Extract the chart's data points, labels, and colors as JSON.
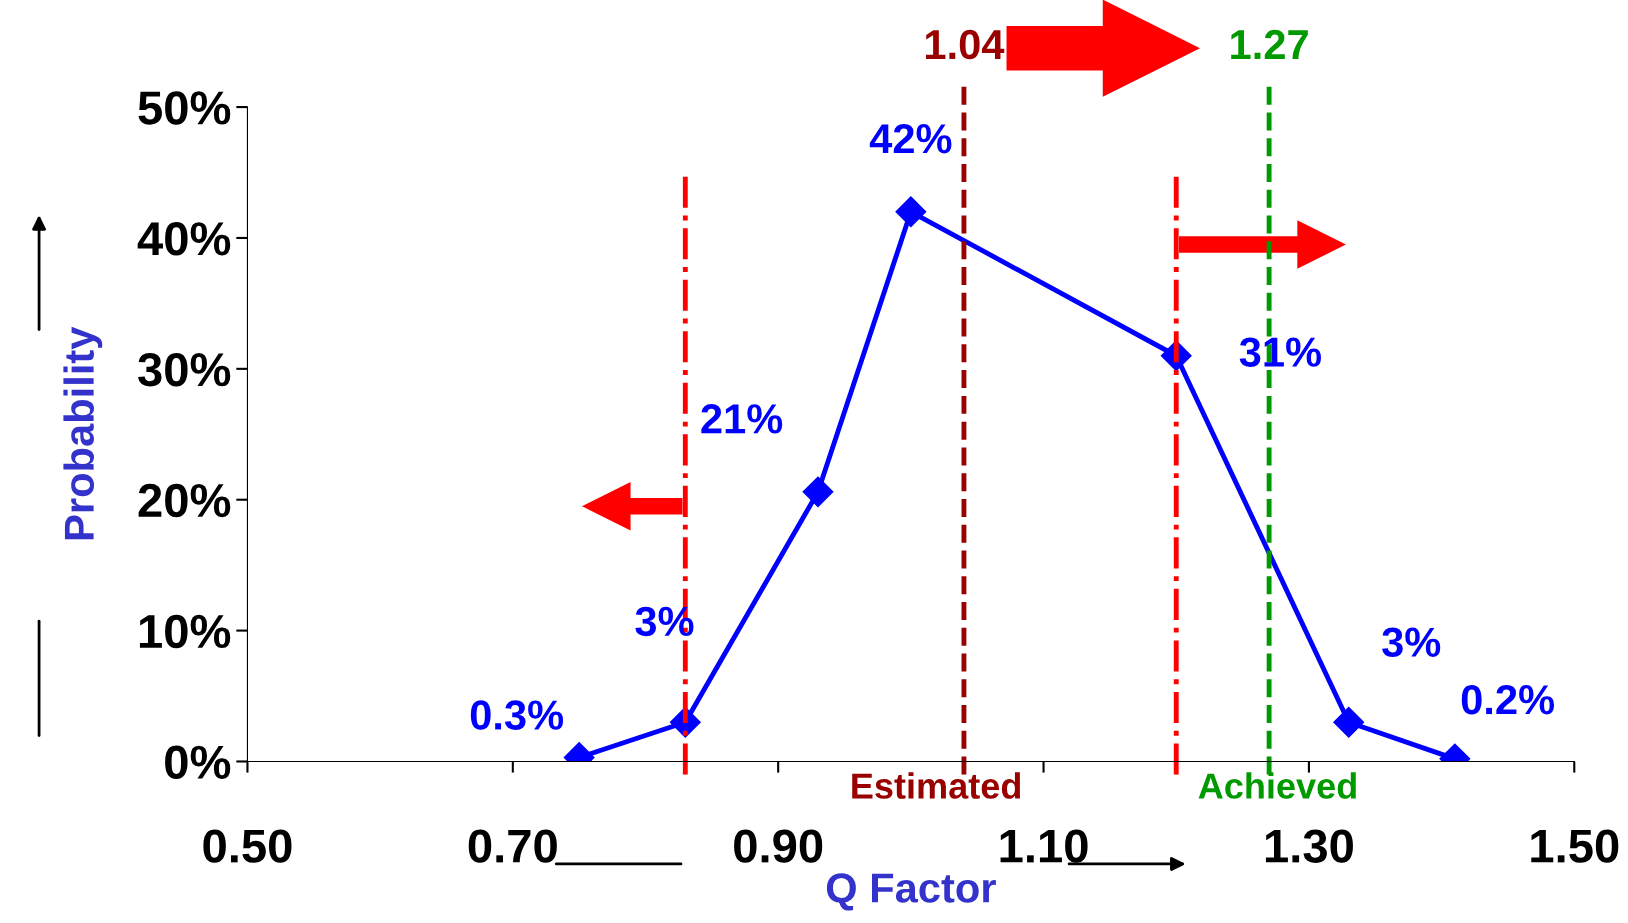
{
  "chart_data": {
    "type": "line",
    "xlabel": "Q Factor",
    "ylabel": "Probability",
    "x": [
      0.75,
      0.83,
      0.93,
      1.0,
      1.2,
      1.33,
      1.41
    ],
    "series": [
      {
        "color": "#0000ff",
        "values": [
          0.3,
          3,
          20.6,
          42,
          31,
          3,
          0.2
        ],
        "value_labels": [
          "0.3%",
          "3%",
          "21%",
          "42%",
          "31%",
          "3%",
          "0.2%"
        ]
      }
    ],
    "marker": "diamond",
    "line_style": "solid",
    "grid": false,
    "legend": false,
    "xlim": [
      0.5,
      1.5
    ],
    "ylim": [
      0,
      50
    ],
    "xticks": [
      {
        "value": 0.5,
        "label": "0.50"
      },
      {
        "value": 0.7,
        "label": "0.70"
      },
      {
        "value": 0.9,
        "label": "0.90"
      },
      {
        "value": 1.1,
        "label": "1.10"
      },
      {
        "value": 1.3,
        "label": "1.30"
      },
      {
        "value": 1.5,
        "label": "1.50"
      }
    ],
    "yticks": [
      {
        "value": 0,
        "label": "0%"
      },
      {
        "value": 10,
        "label": "10%"
      },
      {
        "value": 20,
        "label": "20%"
      },
      {
        "value": 30,
        "label": "30%"
      },
      {
        "value": 40,
        "label": "40%"
      },
      {
        "value": 50,
        "label": "50%"
      }
    ],
    "ref_lines": [
      {
        "axis": "x",
        "value": 0.83,
        "color": "#ff0000",
        "line_style": "dashdot"
      },
      {
        "axis": "x",
        "value": 1.04,
        "label": "1.04",
        "color": "#990000",
        "line_style": "dashed"
      },
      {
        "axis": "x",
        "value": 1.2,
        "color": "#ff0000",
        "line_style": "dashdot"
      },
      {
        "axis": "x",
        "value": 1.27,
        "label": "1.27",
        "color": "#009900",
        "line_style": "dashed"
      }
    ],
    "annotations": [
      "Estimated",
      "Achieved"
    ]
  }
}
